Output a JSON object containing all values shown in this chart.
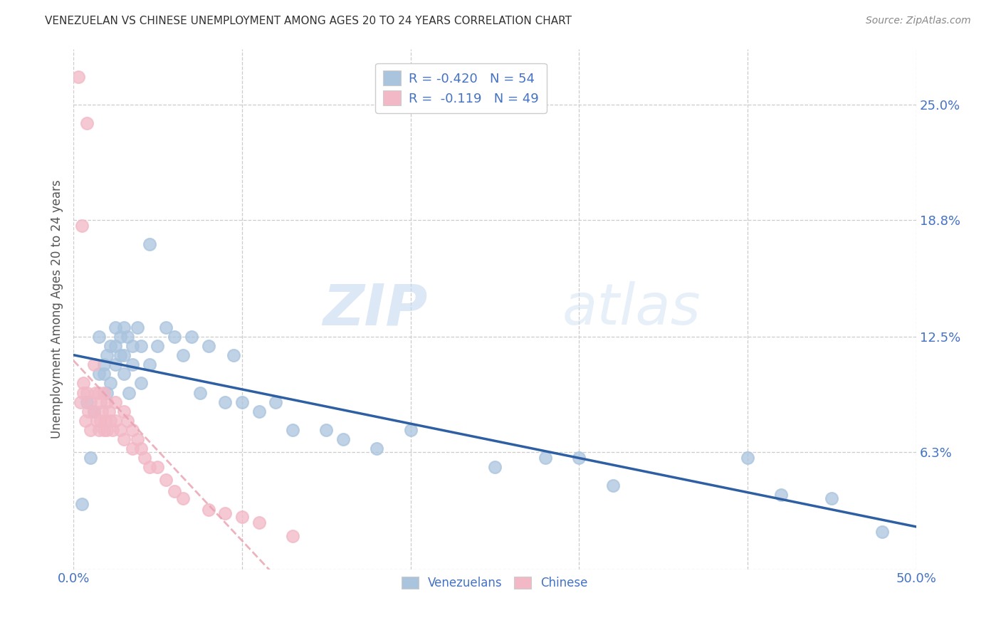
{
  "title": "VENEZUELAN VS CHINESE UNEMPLOYMENT AMONG AGES 20 TO 24 YEARS CORRELATION CHART",
  "source": "Source: ZipAtlas.com",
  "ylabel": "Unemployment Among Ages 20 to 24 years",
  "xlim": [
    0.0,
    0.5
  ],
  "ylim": [
    0.0,
    0.28
  ],
  "xtick_vals": [
    0.0,
    0.1,
    0.2,
    0.3,
    0.4,
    0.5
  ],
  "xticklabels": [
    "0.0%",
    "",
    "",
    "",
    "",
    "50.0%"
  ],
  "ytick_right_labels": [
    "25.0%",
    "18.8%",
    "12.5%",
    "6.3%",
    ""
  ],
  "ytick_right_values": [
    0.25,
    0.188,
    0.125,
    0.063,
    0.0
  ],
  "background_color": "#ffffff",
  "watermark_zip": "ZIP",
  "watermark_atlas": "atlas",
  "venezuelan_color": "#aac4de",
  "chinese_color": "#f2b8c6",
  "venezuelan_line_color": "#2e5fa3",
  "chinese_line_color": "#e8a0b0",
  "legend_R_venezuelan": "-0.420",
  "legend_N_venezuelan": "54",
  "legend_R_chinese": "-0.119",
  "legend_N_chinese": "49",
  "venezuelan_x": [
    0.005,
    0.008,
    0.01,
    0.012,
    0.015,
    0.015,
    0.018,
    0.018,
    0.02,
    0.02,
    0.022,
    0.022,
    0.025,
    0.025,
    0.025,
    0.028,
    0.028,
    0.03,
    0.03,
    0.03,
    0.032,
    0.033,
    0.035,
    0.035,
    0.038,
    0.04,
    0.04,
    0.045,
    0.045,
    0.05,
    0.055,
    0.06,
    0.065,
    0.07,
    0.075,
    0.08,
    0.09,
    0.095,
    0.1,
    0.11,
    0.12,
    0.13,
    0.15,
    0.16,
    0.18,
    0.2,
    0.25,
    0.28,
    0.3,
    0.32,
    0.4,
    0.42,
    0.45,
    0.48
  ],
  "venezuelan_y": [
    0.035,
    0.09,
    0.06,
    0.085,
    0.105,
    0.125,
    0.11,
    0.105,
    0.115,
    0.095,
    0.12,
    0.1,
    0.13,
    0.12,
    0.11,
    0.125,
    0.115,
    0.13,
    0.115,
    0.105,
    0.125,
    0.095,
    0.12,
    0.11,
    0.13,
    0.12,
    0.1,
    0.175,
    0.11,
    0.12,
    0.13,
    0.125,
    0.115,
    0.125,
    0.095,
    0.12,
    0.09,
    0.115,
    0.09,
    0.085,
    0.09,
    0.075,
    0.075,
    0.07,
    0.065,
    0.075,
    0.055,
    0.06,
    0.06,
    0.045,
    0.06,
    0.04,
    0.038,
    0.02
  ],
  "chinese_x": [
    0.003,
    0.004,
    0.005,
    0.006,
    0.006,
    0.007,
    0.008,
    0.008,
    0.009,
    0.01,
    0.01,
    0.012,
    0.012,
    0.013,
    0.014,
    0.015,
    0.015,
    0.016,
    0.016,
    0.017,
    0.018,
    0.018,
    0.019,
    0.02,
    0.02,
    0.021,
    0.022,
    0.023,
    0.025,
    0.025,
    0.028,
    0.03,
    0.03,
    0.032,
    0.035,
    0.035,
    0.038,
    0.04,
    0.042,
    0.045,
    0.05,
    0.055,
    0.06,
    0.065,
    0.08,
    0.09,
    0.1,
    0.11,
    0.13
  ],
  "chinese_y": [
    0.265,
    0.09,
    0.185,
    0.095,
    0.1,
    0.08,
    0.24,
    0.095,
    0.085,
    0.09,
    0.075,
    0.11,
    0.085,
    0.095,
    0.08,
    0.095,
    0.075,
    0.09,
    0.08,
    0.085,
    0.095,
    0.075,
    0.08,
    0.09,
    0.075,
    0.085,
    0.08,
    0.075,
    0.09,
    0.08,
    0.075,
    0.085,
    0.07,
    0.08,
    0.075,
    0.065,
    0.07,
    0.065,
    0.06,
    0.055,
    0.055,
    0.048,
    0.042,
    0.038,
    0.032,
    0.03,
    0.028,
    0.025,
    0.018
  ]
}
